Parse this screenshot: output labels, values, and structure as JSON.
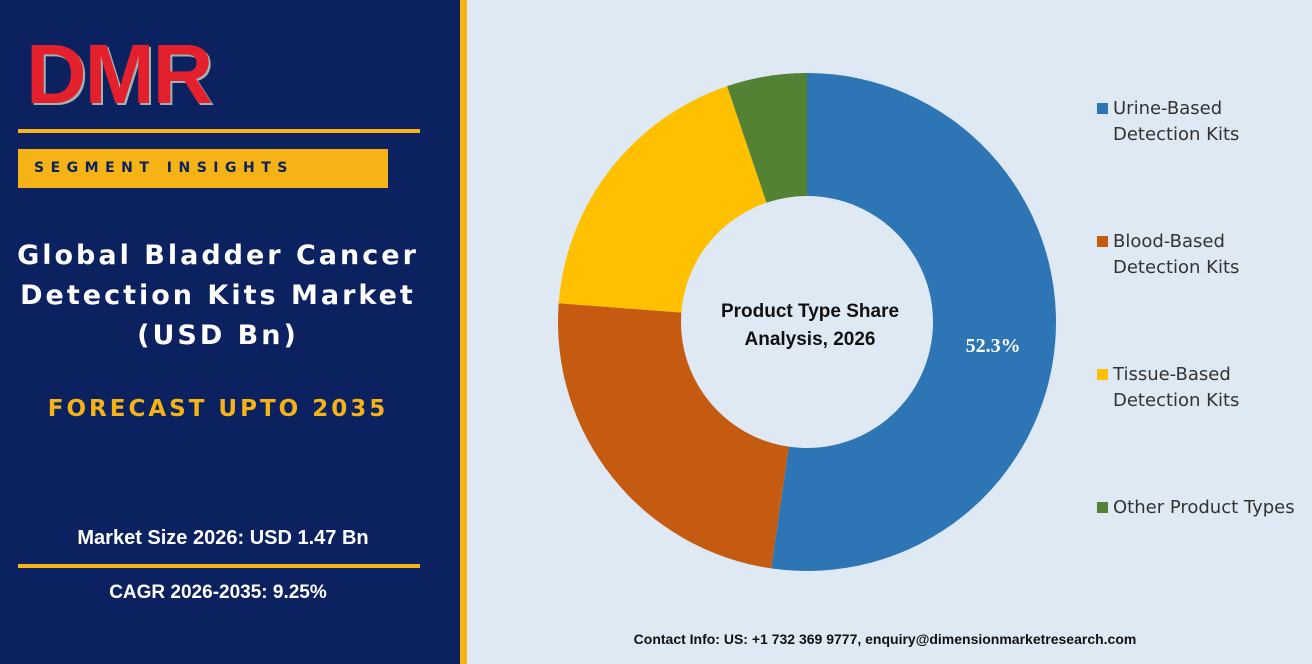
{
  "brand": {
    "logo": "DMR",
    "tag": "SEGMENT INSIGHTS"
  },
  "panel": {
    "title_lines": [
      "Global Bladder Cancer",
      "Detection Kits Market",
      "(USD Bn)"
    ],
    "forecast": "FORECAST UPTO 2035",
    "market_size": "Market Size 2026: USD 1.47  Bn",
    "cagr": "CAGR 2026-2035: 9.25%"
  },
  "chart_data": {
    "type": "donut",
    "title": "Product Type Share Analysis, 2026",
    "categories": [
      "Urine-Based Detection Kits",
      "Blood-Based Detection Kits",
      "Tissue-Based Detection Kits",
      "Other Product Types"
    ],
    "values": [
      52.3,
      23.9,
      18.6,
      5.2
    ],
    "value_labels": [
      "52.3%",
      null,
      null,
      null
    ],
    "colors": [
      "#2e75b6",
      "#c55a11",
      "#ffc000",
      "#548235"
    ],
    "legend": "right"
  },
  "footer": {
    "contact": "Contact Info: US: +1 732 369 9777, enquiry@dimensionmarketresearch.com"
  }
}
